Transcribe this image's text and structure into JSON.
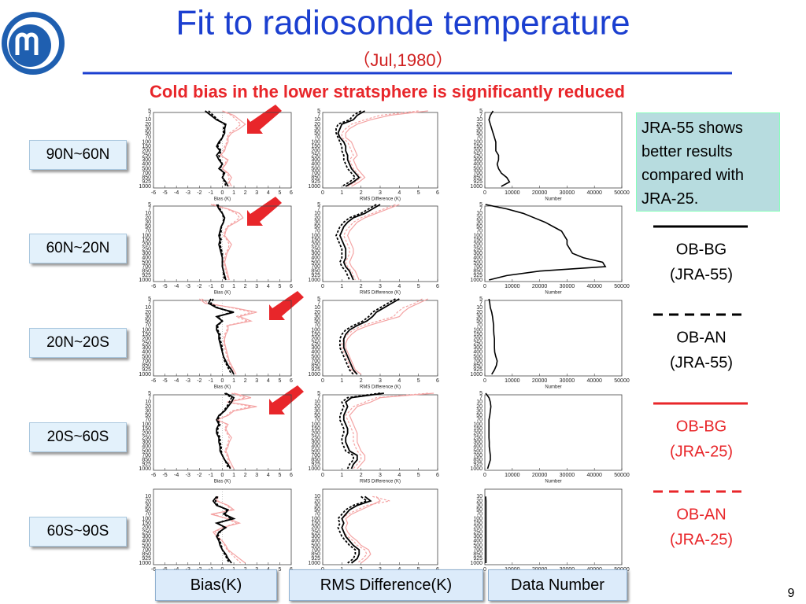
{
  "header": {
    "title": "Fit to radiosonde temperature",
    "subtitle": "（Jul,1980）",
    "headline": "Cold bias in the lower stratsphere is significantly reduced",
    "page_number": "9"
  },
  "note": "JRA-55 shows better results compared with JRA-25.",
  "legend": [
    {
      "line": "OB-BG",
      "system": "(JRA-55)",
      "color": "#000000",
      "plot_color": "#000000",
      "dashed": false
    },
    {
      "line": "OB-AN",
      "system": "(JRA-55)",
      "color": "#000000",
      "plot_color": "#000000",
      "dashed": true
    },
    {
      "line": "OB-BG",
      "system": "(JRA-25)",
      "color": "#e8262a",
      "plot_color": "#f4a3a3",
      "dashed": false
    },
    {
      "line": "OB-AN",
      "system": "(JRA-25)",
      "color": "#e8262a",
      "plot_color": "#f4a3a3",
      "dashed": true
    }
  ],
  "column_labels": [
    "Bias(K)",
    "RMS Difference(K)",
    "Data Number"
  ],
  "axes": {
    "bias": {
      "label": "Bias (K)",
      "xlim": [
        -6,
        6
      ],
      "xticks": [
        -6,
        -5,
        -4,
        -3,
        -2,
        -1,
        0,
        1,
        2,
        3,
        4,
        5,
        6
      ]
    },
    "rms": {
      "label": "RMS Difference (K)",
      "xlim": [
        0,
        6
      ],
      "xticks": [
        0,
        1,
        2,
        3,
        4,
        5,
        6
      ]
    },
    "number": {
      "label": "Number",
      "xlim": [
        0,
        50000
      ],
      "xticks": [
        0,
        10000,
        20000,
        30000,
        40000,
        50000
      ]
    }
  },
  "rows": [
    {
      "region": "90N~60N",
      "levels": [
        5,
        7,
        10,
        20,
        30,
        50,
        70,
        100,
        150,
        200,
        250,
        300,
        400,
        500,
        700,
        850,
        925,
        1000
      ],
      "bias": [
        [
          -1.5,
          -1,
          -0.5,
          0.3,
          0.2,
          0.2,
          0,
          -0.3,
          -0.5,
          -0.2,
          -0.5,
          -0.3,
          0,
          -0.3,
          0.2,
          0,
          0.3,
          0.5
        ],
        [
          -1.2,
          -0.8,
          -0.4,
          0.2,
          0.1,
          0.1,
          0,
          -0.2,
          -0.4,
          -0.1,
          -0.3,
          -0.2,
          0,
          -0.2,
          0.1,
          0,
          0.2,
          0.3
        ],
        [
          0,
          1,
          1.5,
          2,
          1.5,
          0.8,
          0.5,
          0.5,
          0.3,
          0.2,
          -0.2,
          0.5,
          0.3,
          0,
          0.5,
          0.8,
          0.6,
          0.8
        ],
        [
          0,
          0.8,
          1.2,
          1.6,
          1.2,
          0.6,
          0.4,
          0.4,
          0.2,
          0.1,
          -0.1,
          0.4,
          0.2,
          0,
          0.4,
          0.6,
          0.5,
          0.6
        ]
      ],
      "rms": [
        [
          2.2,
          1.8,
          1.6,
          1.0,
          0.9,
          0.8,
          0.9,
          1.1,
          1.2,
          1.2,
          1.3,
          1.3,
          1.4,
          1.5,
          1.7,
          1.9,
          1.6,
          1.2
        ],
        [
          2.0,
          1.6,
          1.4,
          0.8,
          0.7,
          0.7,
          0.8,
          0.9,
          1.0,
          1.0,
          1.1,
          1.1,
          1.2,
          1.3,
          1.5,
          1.7,
          1.4,
          1.0
        ],
        [
          5.5,
          3.5,
          2.5,
          1.8,
          1.4,
          1.2,
          1.2,
          1.5,
          1.6,
          1.7,
          1.8,
          1.6,
          1.7,
          1.8,
          2.0,
          2.2,
          1.9,
          1.5
        ],
        [
          5.0,
          3.0,
          2.2,
          1.5,
          1.2,
          1.0,
          1.0,
          1.3,
          1.4,
          1.5,
          1.6,
          1.4,
          1.5,
          1.6,
          1.8,
          2.0,
          1.7,
          1.3
        ]
      ],
      "number": [
        3000,
        2000,
        1500,
        2000,
        2500,
        3000,
        3500,
        4000,
        4000,
        4000,
        5000,
        5000,
        4500,
        5000,
        6000,
        8000,
        9000,
        6000
      ]
    },
    {
      "region": "60N~20N",
      "levels": [
        5,
        7,
        10,
        20,
        30,
        50,
        70,
        100,
        150,
        200,
        250,
        300,
        400,
        500,
        700,
        850,
        925,
        1000
      ],
      "bias": [
        [
          -0.5,
          -0.3,
          0,
          0.2,
          0.1,
          -0.1,
          -0.2,
          -0.3,
          -0.2,
          -0.3,
          -0.2,
          -0.1,
          0,
          0,
          0,
          0.1,
          0.2,
          0.3
        ],
        [
          -0.4,
          -0.2,
          0,
          0.1,
          0.1,
          -0.1,
          -0.1,
          -0.2,
          -0.1,
          -0.2,
          -0.1,
          0,
          0,
          0,
          0,
          0.1,
          0.1,
          0.2
        ],
        [
          -1,
          0.5,
          1.5,
          1.8,
          1.2,
          0.5,
          0.3,
          0.2,
          0.5,
          0.8,
          0.6,
          0.4,
          0.3,
          0.2,
          0.3,
          0.4,
          0.5,
          0.6
        ],
        [
          -0.8,
          0.4,
          1.2,
          1.5,
          1.0,
          0.4,
          0.2,
          0.1,
          0.4,
          0.6,
          0.5,
          0.3,
          0.2,
          0.1,
          0.2,
          0.3,
          0.4,
          0.5
        ]
      ],
      "rms": [
        [
          3,
          2.6,
          2.2,
          1.6,
          1.3,
          1.1,
          1.0,
          0.9,
          1.0,
          1.1,
          1.2,
          1.2,
          1.2,
          1.1,
          1.2,
          1.4,
          1.5,
          1.6
        ],
        [
          2.8,
          2.4,
          2.0,
          1.4,
          1.1,
          0.9,
          0.8,
          0.7,
          0.8,
          0.9,
          1.0,
          1.0,
          1.0,
          0.9,
          1.0,
          1.2,
          1.3,
          1.4
        ],
        [
          4,
          3.4,
          2.8,
          2.2,
          1.8,
          1.6,
          1.4,
          1.3,
          1.4,
          1.5,
          1.6,
          1.6,
          1.5,
          1.4,
          1.5,
          1.7,
          1.8,
          1.9
        ],
        [
          3.8,
          3.2,
          2.6,
          2.0,
          1.6,
          1.4,
          1.2,
          1.1,
          1.2,
          1.3,
          1.4,
          1.4,
          1.3,
          1.2,
          1.3,
          1.5,
          1.6,
          1.7
        ]
      ],
      "number": [
        200,
        8000,
        14000,
        18000,
        22000,
        25000,
        28000,
        29000,
        30000,
        30000,
        31000,
        32000,
        36000,
        43000,
        44000,
        20000,
        8000,
        1500
      ]
    },
    {
      "region": "20N~20S",
      "levels": [
        5,
        7,
        10,
        20,
        30,
        50,
        70,
        100,
        150,
        200,
        250,
        300,
        400,
        500,
        700,
        850,
        925,
        1000
      ],
      "bias": [
        [
          -1,
          -1.2,
          -0.5,
          1,
          -0.5,
          0,
          -0.5,
          -0.5,
          -0.3,
          -0.3,
          -0.2,
          -0.1,
          0,
          0.1,
          0.3,
          0.5,
          0.8,
          1
        ],
        [
          -0.8,
          -1,
          -0.4,
          0.8,
          -0.4,
          0,
          -0.4,
          -0.4,
          -0.2,
          -0.2,
          -0.1,
          0,
          0,
          0.1,
          0.2,
          0.4,
          0.6,
          0.8
        ],
        [
          -2,
          -1.5,
          1,
          3,
          1.5,
          2.5,
          0.5,
          0.5,
          0.3,
          0.2,
          0.2,
          0.3,
          0.4,
          0.5,
          0.6,
          0.8,
          1,
          1.2
        ],
        [
          -1.8,
          -1.2,
          0.8,
          2.6,
          1.2,
          2.2,
          0.4,
          0.4,
          0.2,
          0.1,
          0.1,
          0.2,
          0.3,
          0.4,
          0.5,
          0.7,
          0.9,
          1
        ]
      ],
      "rms": [
        [
          4,
          3.6,
          3.2,
          2.8,
          2.6,
          2.3,
          1.8,
          1.4,
          1.2,
          1.1,
          1.1,
          1.1,
          1.2,
          1.3,
          1.4,
          1.5,
          1.6,
          1.8
        ],
        [
          3.8,
          3.4,
          3.0,
          2.6,
          2.4,
          2.1,
          1.6,
          1.2,
          1.0,
          0.9,
          0.9,
          0.9,
          1.0,
          1.1,
          1.2,
          1.3,
          1.4,
          1.6
        ],
        [
          5.5,
          5,
          4.5,
          4.2,
          4.0,
          3.2,
          2.4,
          1.8,
          1.5,
          1.3,
          1.2,
          1.2,
          1.3,
          1.4,
          1.5,
          1.6,
          1.7,
          2.0
        ],
        [
          5.2,
          4.8,
          4.2,
          3.9,
          3.7,
          2.9,
          2.1,
          1.6,
          1.3,
          1.1,
          1.0,
          1.0,
          1.1,
          1.2,
          1.3,
          1.4,
          1.5,
          1.8
        ]
      ],
      "number": [
        1500,
        1800,
        2000,
        2500,
        2800,
        3000,
        3200,
        3200,
        3300,
        3500,
        3500,
        3500,
        3600,
        4000,
        4500,
        4200,
        3500,
        2500
      ]
    },
    {
      "region": "20S~60S",
      "levels": [
        5,
        7,
        10,
        20,
        30,
        50,
        70,
        100,
        150,
        200,
        250,
        300,
        400,
        500,
        700,
        850,
        925,
        1000
      ],
      "bias": [
        [
          0.3,
          1,
          0.8,
          0.5,
          0.2,
          -0.3,
          -0.5,
          -0.3,
          -0.5,
          -0.5,
          -0.3,
          -0.3,
          -0.2,
          -0.2,
          0,
          0.2,
          0.5,
          0.7
        ],
        [
          0.2,
          0.8,
          0.6,
          0.4,
          0.1,
          -0.2,
          -0.4,
          -0.2,
          -0.4,
          -0.4,
          -0.2,
          -0.2,
          -0.1,
          -0.1,
          0,
          0.2,
          0.4,
          0.5
        ],
        [
          1,
          2.5,
          0.5,
          3,
          1,
          0.5,
          -0.5,
          0.5,
          0.3,
          0.5,
          0.8,
          0.6,
          0.5,
          0.3,
          0.5,
          0.6,
          0.8,
          1
        ],
        [
          0.8,
          2,
          0.4,
          2.5,
          0.8,
          0.4,
          -0.4,
          0.4,
          0.2,
          0.4,
          0.6,
          0.5,
          0.4,
          0.2,
          0.4,
          0.5,
          0.6,
          0.8
        ]
      ],
      "rms": [
        [
          3.2,
          1.5,
          1.2,
          1.3,
          1.2,
          1.1,
          1.1,
          1.2,
          1.3,
          1.3,
          1.2,
          1.2,
          1.3,
          1.4,
          1.8,
          1.8,
          1.6,
          1.5
        ],
        [
          3.0,
          1.3,
          1.0,
          1.1,
          1.0,
          0.9,
          0.9,
          1.0,
          1.1,
          1.1,
          1.0,
          1.0,
          1.1,
          1.2,
          1.6,
          1.6,
          1.4,
          1.3
        ],
        [
          5.8,
          3,
          2.5,
          1.8,
          1.6,
          1.4,
          1.5,
          1.6,
          1.7,
          1.8,
          1.8,
          1.8,
          1.9,
          2.0,
          2.2,
          2.2,
          2.0,
          1.8
        ],
        [
          5.5,
          2.8,
          2.2,
          1.6,
          1.4,
          1.2,
          1.3,
          1.4,
          1.5,
          1.6,
          1.6,
          1.6,
          1.7,
          1.8,
          2.0,
          2.0,
          1.8,
          1.6
        ]
      ],
      "number": [
        300,
        1500,
        2000,
        2200,
        2000,
        1800,
        1500,
        1500,
        1500,
        1500,
        1500,
        1600,
        1600,
        1800,
        2000,
        2000,
        1500,
        1000
      ]
    },
    {
      "region": "60S~90S",
      "levels": [
        10,
        20,
        30,
        50,
        70,
        100,
        150,
        200,
        250,
        300,
        400,
        500,
        700,
        850,
        925,
        1000
      ],
      "bias": [
        [
          -0.5,
          -0.8,
          -0.5,
          0.5,
          0.2,
          1.0,
          -0.5,
          0.3,
          -0.3,
          -0.5,
          -0.3,
          -0.2,
          0,
          0.3,
          0.5,
          0.8
        ],
        [
          -0.4,
          -0.6,
          -0.4,
          0.4,
          0.1,
          0.8,
          -0.4,
          0.2,
          -0.2,
          -0.4,
          -0.2,
          -0.1,
          0,
          0.2,
          0.4,
          0.6
        ],
        [
          -0.5,
          -0.5,
          0.5,
          1,
          -1,
          0.5,
          1.5,
          0,
          -0.8,
          -0.5,
          0,
          0.3,
          0.5,
          1,
          1.5,
          2
        ],
        [
          -0.4,
          -0.4,
          0.4,
          0.8,
          -0.8,
          0.4,
          1.2,
          0,
          -0.6,
          -0.4,
          0,
          0.2,
          0.4,
          0.8,
          1.2,
          1.6
        ]
      ],
      "rms": [
        [
          2.2,
          2.5,
          1.8,
          1.4,
          1.2,
          1.0,
          1.1,
          1.0,
          1.1,
          1.2,
          1.4,
          1.6,
          1.9,
          1.9,
          1.8,
          1.5
        ],
        [
          2.0,
          2.3,
          1.6,
          1.2,
          1.0,
          0.8,
          0.9,
          0.8,
          0.9,
          1.0,
          1.2,
          1.4,
          1.7,
          1.7,
          1.6,
          1.3
        ],
        [
          2.8,
          3.0,
          2.5,
          2.0,
          1.5,
          1.2,
          1.3,
          1.2,
          1.3,
          1.5,
          1.8,
          2.0,
          2.4,
          2.5,
          2.3,
          2.0
        ],
        [
          2.6,
          3.5,
          2.3,
          1.8,
          1.3,
          1.0,
          1.1,
          1.0,
          1.1,
          1.3,
          1.6,
          1.8,
          2.2,
          2.3,
          2.1,
          1.8
        ]
      ],
      "number": [
        300,
        400,
        400,
        400,
        400,
        400,
        400,
        400,
        400,
        400,
        400,
        400,
        400,
        400,
        400,
        400
      ]
    }
  ]
}
